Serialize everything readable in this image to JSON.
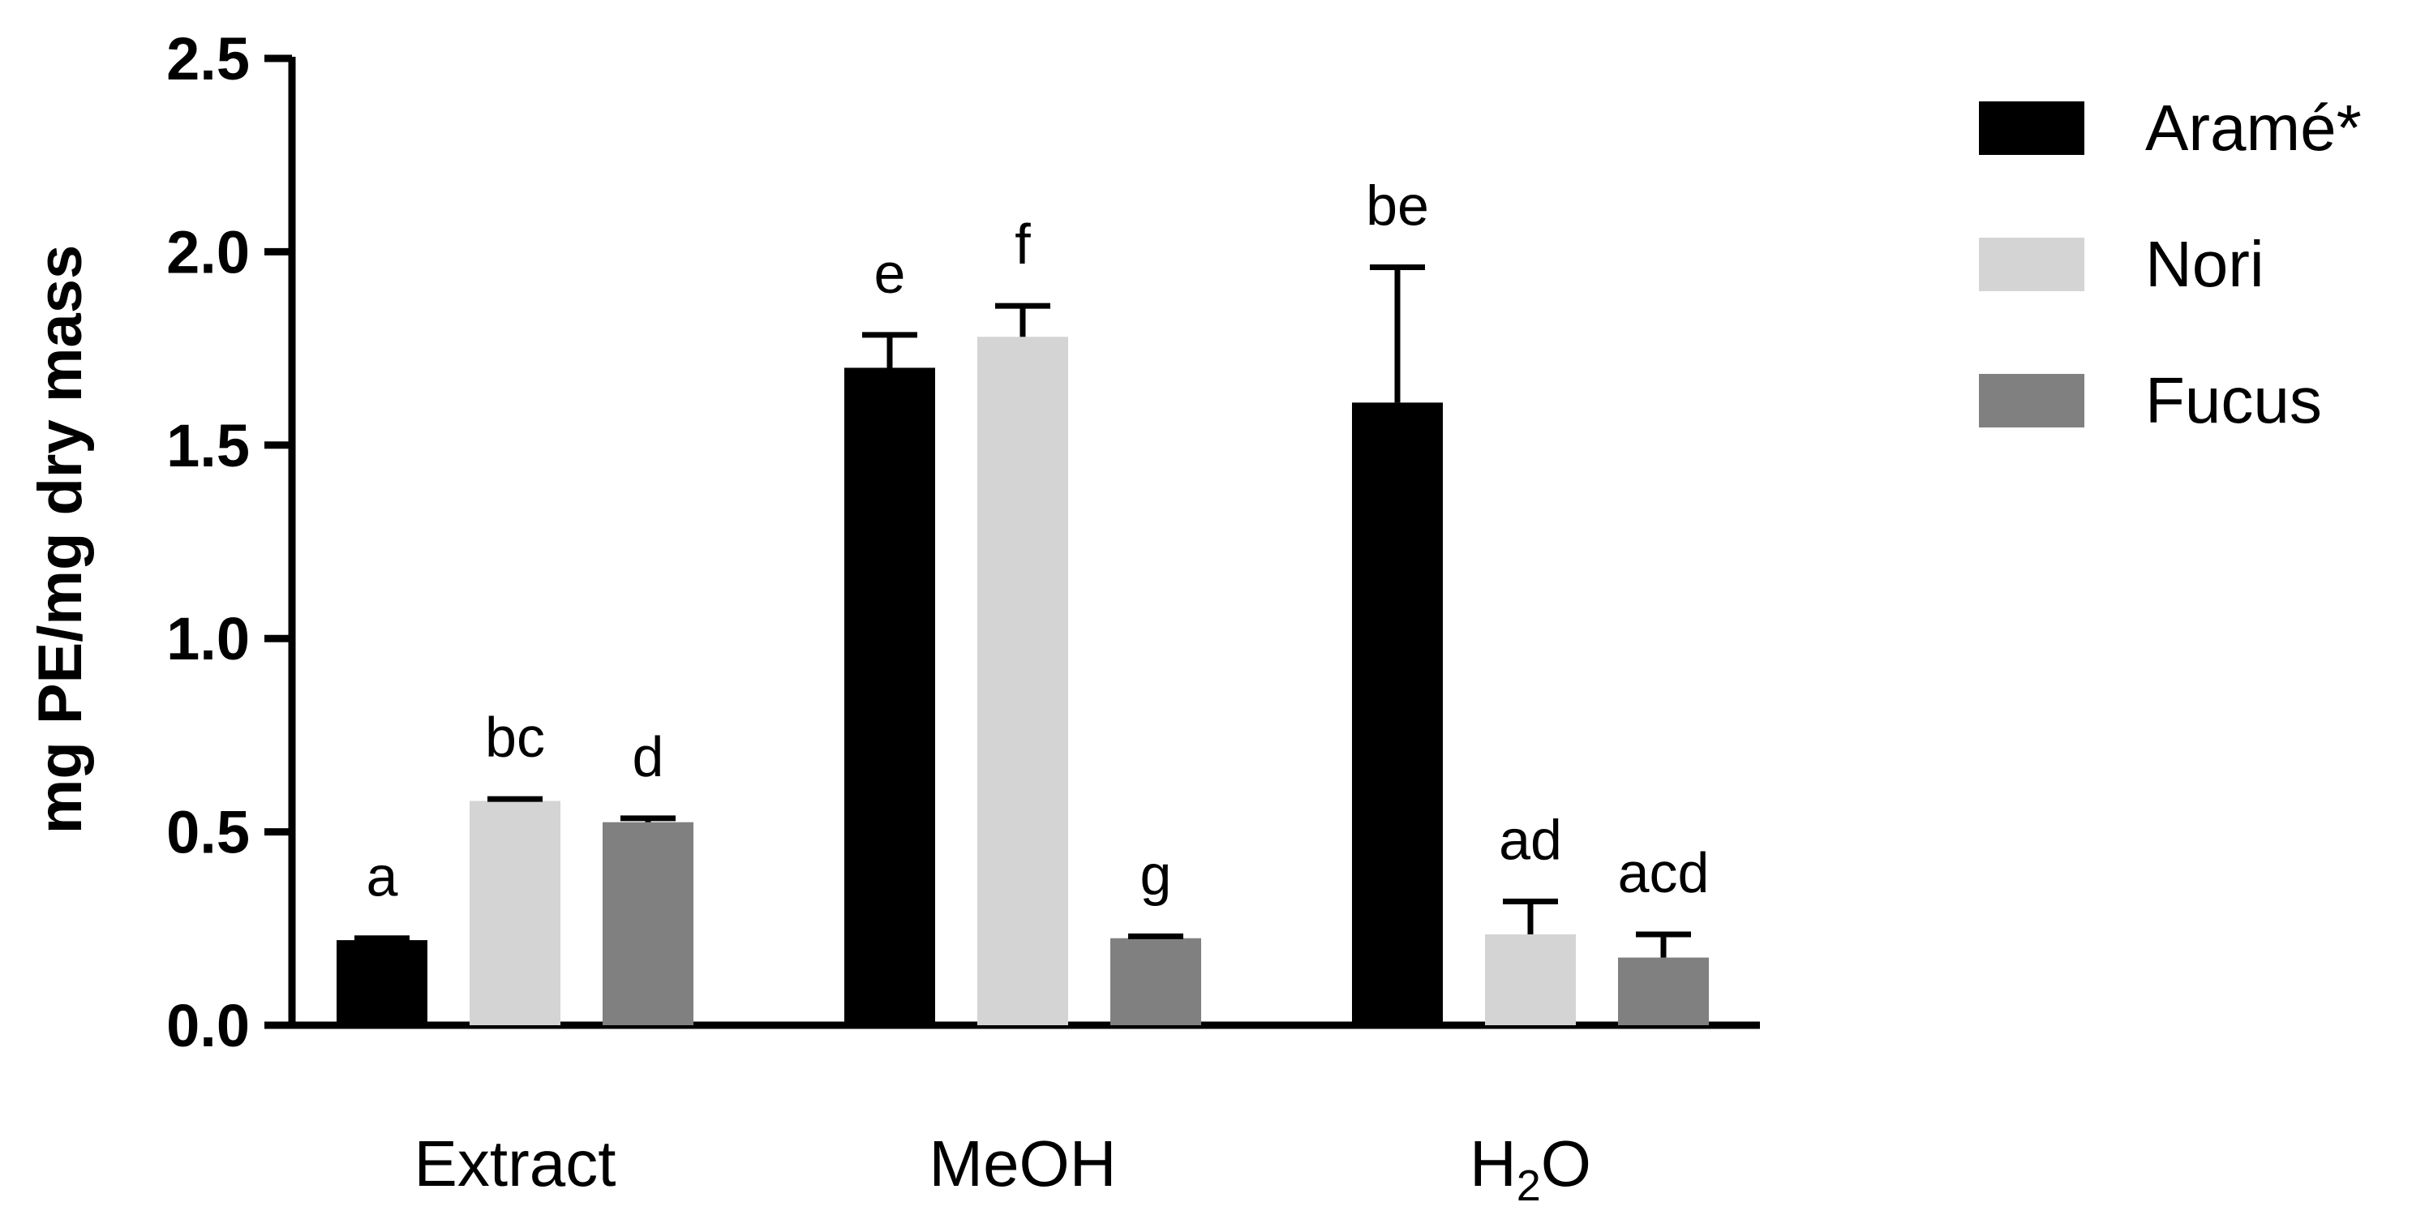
{
  "chart_data": {
    "type": "bar",
    "title": "",
    "xlabel": "",
    "ylabel": "mg PE/mg dry mass",
    "ylim": [
      0,
      2.5
    ],
    "yticks": [
      "0.0",
      "0.5",
      "1.0",
      "1.5",
      "2.0",
      "2.5"
    ],
    "categories": [
      "Extract",
      "MeOH",
      "H2O"
    ],
    "series": [
      {
        "name": "Aramé*",
        "color": "#000000",
        "values": [
          0.22,
          1.7,
          1.61
        ],
        "errors": [
          0.005,
          0.085,
          0.35
        ],
        "labels": [
          "a",
          "e",
          "be"
        ]
      },
      {
        "name": "Nori",
        "color": "#d4d4d4",
        "values": [
          0.58,
          1.78,
          0.235
        ],
        "errors": [
          0.005,
          0.08,
          0.085
        ],
        "labels": [
          "bc",
          "f",
          "ad"
        ]
      },
      {
        "name": "Fucus",
        "color": "#808080",
        "values": [
          0.525,
          0.225,
          0.175
        ],
        "errors": [
          0.01,
          0.005,
          0.06
        ],
        "labels": [
          "d",
          "g",
          "acd"
        ]
      }
    ],
    "legend_position": "top-right",
    "grid": false
  }
}
